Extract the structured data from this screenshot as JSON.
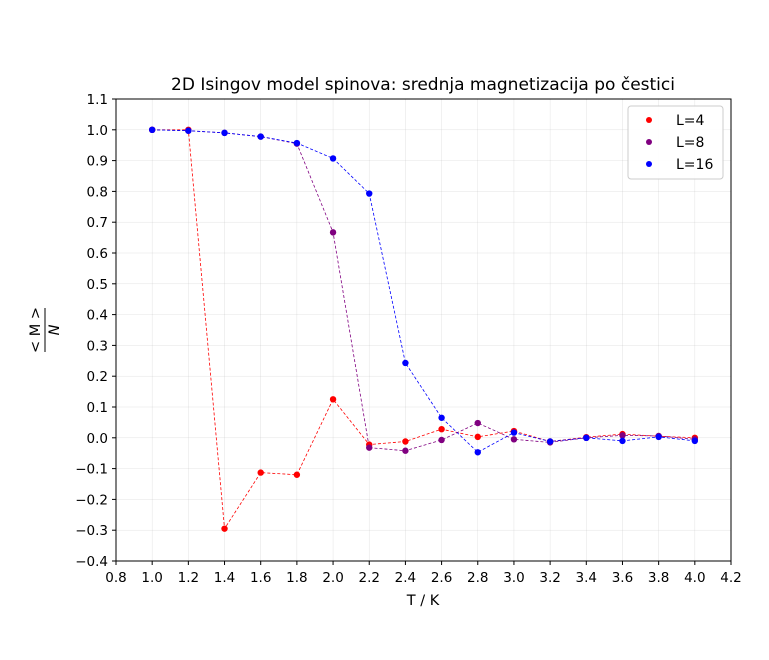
{
  "chart_data": {
    "type": "scatter",
    "title": "2D Isingov model spinova: srednja magnetizacija po čestici",
    "xlabel": "T / K",
    "ylabel": {
      "numerator": "< M >",
      "denominator": "N"
    },
    "xlim": [
      0.8,
      4.2
    ],
    "ylim": [
      -0.4,
      1.1
    ],
    "xticks": [
      "0.8",
      "1.0",
      "1.2",
      "1.4",
      "1.6",
      "1.8",
      "2.0",
      "2.2",
      "2.4",
      "2.6",
      "2.8",
      "3.0",
      "3.2",
      "3.4",
      "3.6",
      "3.8",
      "4.0",
      "4.2"
    ],
    "yticks": [
      "−0.4",
      "−0.3",
      "−0.2",
      "−0.1",
      "0.0",
      "0.1",
      "0.2",
      "0.3",
      "0.4",
      "0.5",
      "0.6",
      "0.7",
      "0.8",
      "0.9",
      "1.0",
      "1.1"
    ],
    "grid": true,
    "legend_position": "top-right",
    "x": [
      1.0,
      1.2,
      1.4,
      1.6,
      1.8,
      2.0,
      2.2,
      2.4,
      2.6,
      2.8,
      3.0,
      3.2,
      3.4,
      3.6,
      3.8,
      4.0
    ],
    "series": [
      {
        "name": "L=4",
        "color": "#ff0000",
        "values": [
          1.0,
          1.0,
          -0.295,
          -0.113,
          -0.12,
          0.125,
          -0.022,
          -0.012,
          0.028,
          0.003,
          0.022,
          -0.012,
          0.002,
          0.012,
          0.005,
          0.0
        ]
      },
      {
        "name": "L=8",
        "color": "#800080",
        "values": [
          1.0,
          0.997,
          0.99,
          0.978,
          0.955,
          0.667,
          -0.032,
          -0.042,
          -0.007,
          0.048,
          -0.005,
          -0.015,
          0.0,
          0.008,
          0.006,
          -0.005
        ]
      },
      {
        "name": "L=16",
        "color": "#0000ff",
        "values": [
          1.0,
          0.997,
          0.99,
          0.978,
          0.957,
          0.907,
          0.793,
          0.243,
          0.065,
          -0.047,
          0.017,
          -0.012,
          0.0,
          -0.01,
          0.003,
          -0.01
        ]
      }
    ]
  }
}
